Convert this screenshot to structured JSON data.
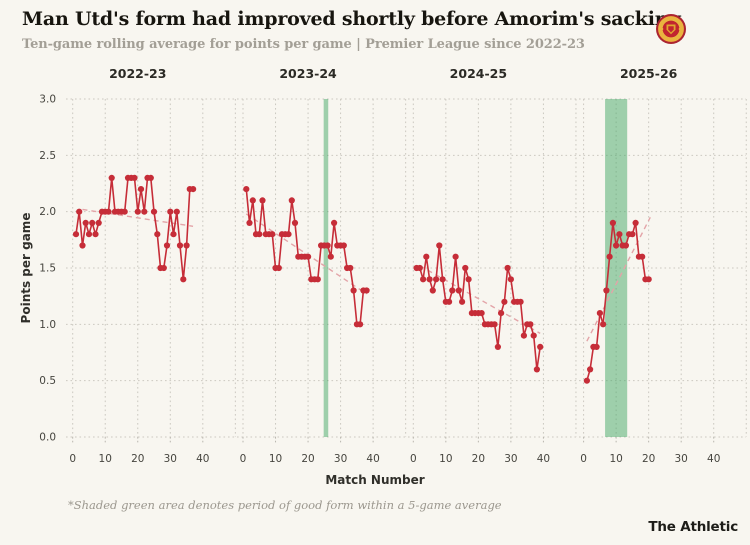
{
  "header": {
    "title": "Man Utd's form had improved shortly before Amorim's sacking",
    "subtitle": "Ten-game rolling average for points per game | Premier League since 2022-23"
  },
  "badge": "manchester-united-crest",
  "footnote": "*Shaded green area denotes period of good form within a 5-game average",
  "brand": "The Athletic",
  "colors": {
    "background": "#f8f6f0",
    "line": "#c62d38",
    "trend": "#e3a4a8",
    "band": "#44a866",
    "grid": "#cbc8c0",
    "axis": "#46453f",
    "title": "#17150f",
    "subtitle": "#a39f96",
    "footnote": "#9b978e",
    "brand_text": "#1d1c18"
  },
  "chart_data": {
    "type": "line",
    "title": "Man Utd's form had improved shortly before Amorim's sacking",
    "subtitle": "Ten-game rolling average for points per game | Premier League since 2022-23",
    "xlabel": "Match Number",
    "ylabel": "Points per game",
    "ylim": [
      0.0,
      3.0
    ],
    "xlim": [
      0,
      40
    ],
    "yticks": [
      0.0,
      0.5,
      1.0,
      1.5,
      2.0,
      2.5,
      3.0
    ],
    "xticks": [
      0,
      10,
      20,
      30,
      40
    ],
    "grid": "dotted",
    "legend": null,
    "annotation": "*Shaded green area denotes period of good form within a 5-game average",
    "panels": [
      {
        "season": "2022-23",
        "x_start": 1,
        "values": [
          1.8,
          2.0,
          1.7,
          1.9,
          1.8,
          1.9,
          1.8,
          1.9,
          2.0,
          2.0,
          2.0,
          2.3,
          2.0,
          2.0,
          2.0,
          2.0,
          2.3,
          2.3,
          2.3,
          2.0,
          2.2,
          2.0,
          2.3,
          2.3,
          2.0,
          1.8,
          1.5,
          1.5,
          1.7,
          2.0,
          1.8,
          2.0,
          1.7,
          1.4,
          1.7,
          2.2,
          2.2
        ],
        "trend": {
          "x": [
            3,
            37
          ],
          "v": [
            2.02,
            1.87
          ]
        },
        "band": null
      },
      {
        "season": "2023-24",
        "x_start": 1,
        "values": [
          2.2,
          1.9,
          2.1,
          1.8,
          1.8,
          2.1,
          1.8,
          1.8,
          1.8,
          1.5,
          1.5,
          1.8,
          1.8,
          1.8,
          2.1,
          1.9,
          1.6,
          1.6,
          1.6,
          1.6,
          1.4,
          1.4,
          1.4,
          1.7,
          1.7,
          1.7,
          1.6,
          1.9,
          1.7,
          1.7,
          1.7,
          1.5,
          1.5,
          1.3,
          1.0,
          1.0,
          1.3,
          1.3
        ],
        "trend": {
          "x": [
            1,
            38
          ],
          "v": [
            1.98,
            1.27
          ]
        },
        "band": {
          "from": 24.8,
          "to": 26.2
        }
      },
      {
        "season": "2024-25",
        "x_start": 1,
        "values": [
          1.5,
          1.5,
          1.4,
          1.6,
          1.4,
          1.3,
          1.4,
          1.7,
          1.4,
          1.2,
          1.2,
          1.3,
          1.6,
          1.3,
          1.2,
          1.5,
          1.4,
          1.1,
          1.1,
          1.1,
          1.1,
          1.0,
          1.0,
          1.0,
          1.0,
          0.8,
          1.1,
          1.2,
          1.5,
          1.4,
          1.2,
          1.2,
          1.2,
          0.9,
          1.0,
          1.0,
          0.9,
          0.6,
          0.8
        ],
        "trend": {
          "x": [
            2,
            39
          ],
          "v": [
            1.52,
            0.92
          ]
        },
        "band": null
      },
      {
        "season": "2025-26",
        "x_start": 1,
        "values": [
          0.5,
          0.6,
          0.8,
          0.8,
          1.1,
          1.0,
          1.3,
          1.6,
          1.9,
          1.7,
          1.8,
          1.7,
          1.7,
          1.8,
          1.8,
          1.9,
          1.6,
          1.6,
          1.4,
          1.4
        ],
        "trend": {
          "x": [
            1,
            20.5
          ],
          "v": [
            0.85,
            1.95
          ]
        },
        "band": {
          "from": 6.6,
          "to": 13.4
        }
      }
    ]
  }
}
